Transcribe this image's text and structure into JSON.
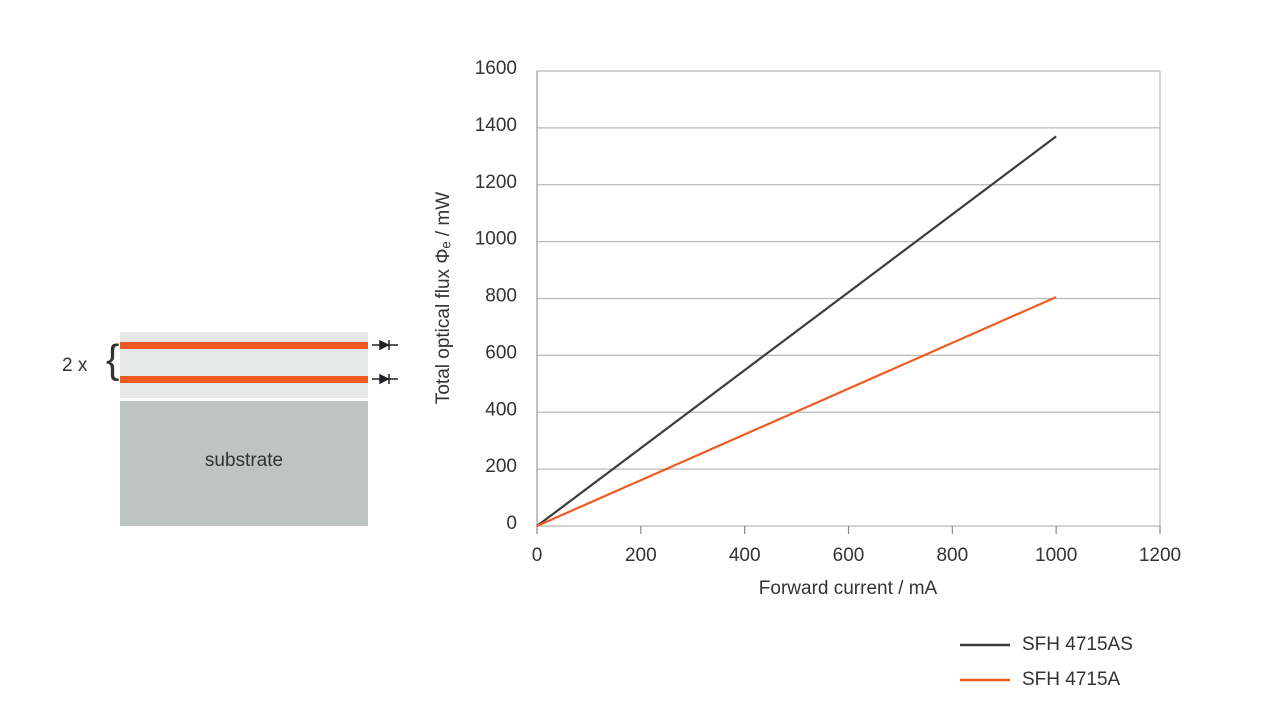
{
  "chart_data": {
    "type": "line",
    "xlabel": "Forward current / mA",
    "ylabel": "Total optical flux Φₑ / mW",
    "x": [
      0,
      1000
    ],
    "series": [
      {
        "name": "SFH 4715AS",
        "color": "#3d3d3d",
        "values": [
          0,
          1370
        ]
      },
      {
        "name": "SFH 4715A",
        "color": "#f05a22",
        "values": [
          0,
          805
        ]
      }
    ],
    "xlim": [
      0,
      1200
    ],
    "xticks": [
      0,
      200,
      400,
      600,
      800,
      1000,
      1200
    ],
    "ylim": [
      0,
      1600
    ],
    "yticks": [
      0,
      200,
      400,
      600,
      800,
      1000,
      1200,
      1400,
      1600
    ],
    "grid": true,
    "legend": "bottom-right"
  },
  "diagram": {
    "multiplier": "2 x",
    "substrate": "substrate"
  }
}
